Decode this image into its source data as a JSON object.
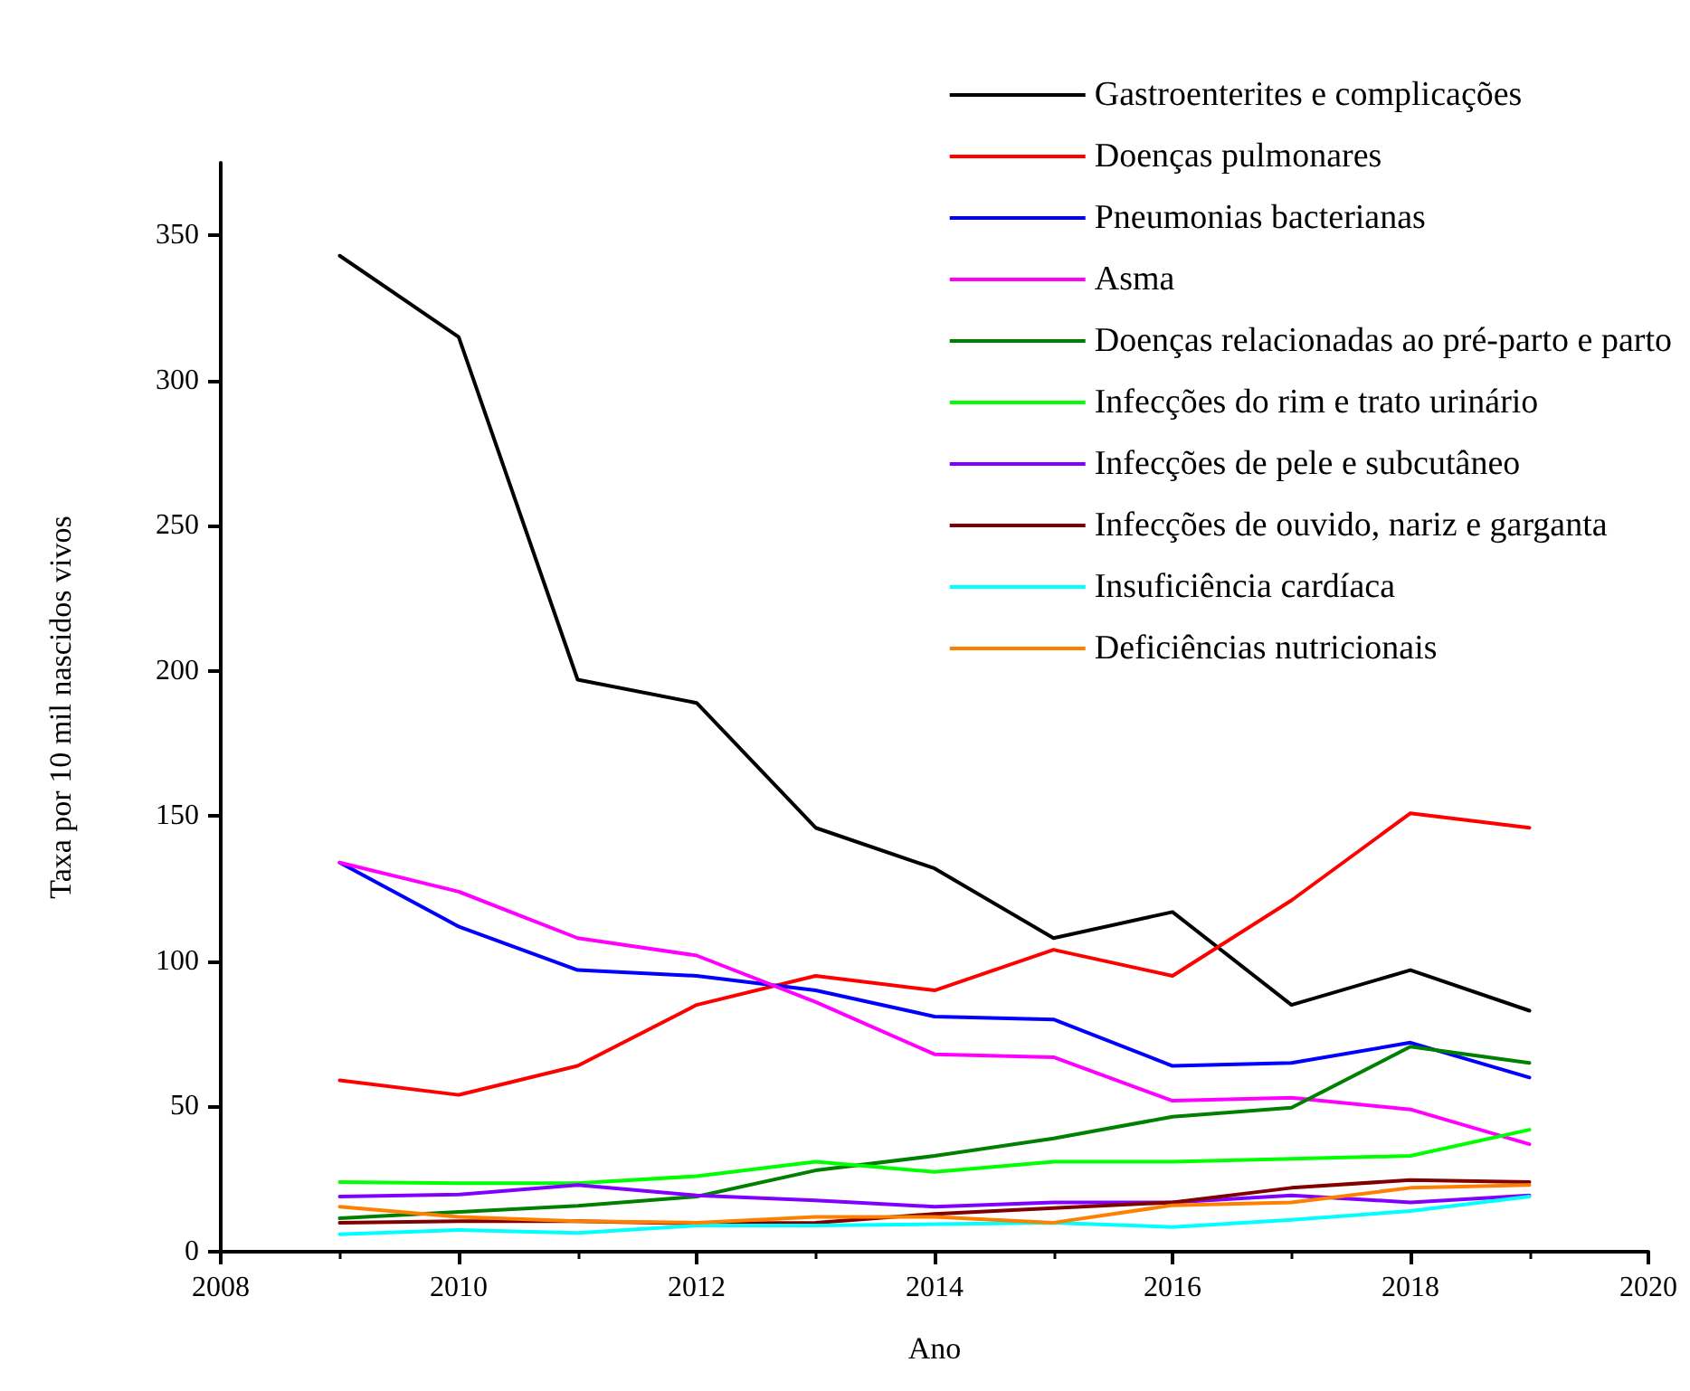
{
  "chart_data": {
    "type": "line",
    "xlabel": "Ano",
    "ylabel": "Taxa por 10 mil nascidos vivos",
    "x": [
      2009,
      2010,
      2011,
      2012,
      2013,
      2014,
      2015,
      2016,
      2017,
      2018,
      2019
    ],
    "xlim": [
      2008,
      2020
    ],
    "xticks": [
      2008,
      2010,
      2012,
      2014,
      2016,
      2018,
      2020
    ],
    "ylim": [
      0,
      375
    ],
    "yticks": [
      0,
      50,
      100,
      150,
      200,
      250,
      300,
      350
    ],
    "grid": false,
    "legend": "top right",
    "marker": "none",
    "line_style": "solid",
    "series": [
      {
        "name": "Gastroenterites e complicações",
        "color": "#000000",
        "values": [
          343,
          315,
          197,
          189,
          146,
          132,
          108,
          117,
          85,
          97,
          83
        ]
      },
      {
        "name": "Doenças pulmonares",
        "color": "#ff0000",
        "values": [
          59,
          54,
          64,
          85,
          95,
          90,
          104,
          95,
          121,
          151,
          146
        ]
      },
      {
        "name": "Pneumonias bacterianas",
        "color": "#0000ff",
        "values": [
          134,
          112,
          97,
          95,
          90,
          81,
          80,
          64,
          65,
          72,
          60
        ]
      },
      {
        "name": "Asma",
        "color": "#ff00ff",
        "values": [
          134,
          124,
          108,
          102,
          86,
          68,
          67,
          52,
          53,
          49,
          37
        ]
      },
      {
        "name": "Doenças relacionadas ao pré-parto e parto",
        "color": "#008000",
        "values": [
          11.5,
          13.7,
          15.8,
          19,
          28,
          33,
          39,
          46.5,
          49.6,
          70.6,
          65
        ]
      },
      {
        "name": "Infecções do rim e trato urinário",
        "color": "#00ff00",
        "values": [
          24,
          23.6,
          23.6,
          26,
          31,
          27.5,
          31,
          31,
          32,
          33,
          42
        ]
      },
      {
        "name": "Infecções de pele e subcutâneo",
        "color": "#8000ff",
        "values": [
          19,
          19.7,
          23,
          19.4,
          17.7,
          15.5,
          17,
          17,
          19.4,
          17,
          19.4
        ]
      },
      {
        "name": "Infecções de ouvido, nariz e garganta",
        "color": "#800000",
        "values": [
          10,
          10.5,
          10.5,
          9.7,
          10,
          13,
          15,
          17,
          22,
          24.7,
          24
        ]
      },
      {
        "name": "Insuficiência cardíaca",
        "color": "#00ffff",
        "values": [
          6,
          7.5,
          6.5,
          9,
          9,
          9.5,
          10,
          8.5,
          11,
          14,
          19
        ]
      },
      {
        "name": "Deficiências nutricionais",
        "color": "#ff8000",
        "values": [
          15.5,
          12,
          10.5,
          10,
          12,
          12,
          10,
          16,
          17,
          22,
          23
        ]
      }
    ]
  }
}
